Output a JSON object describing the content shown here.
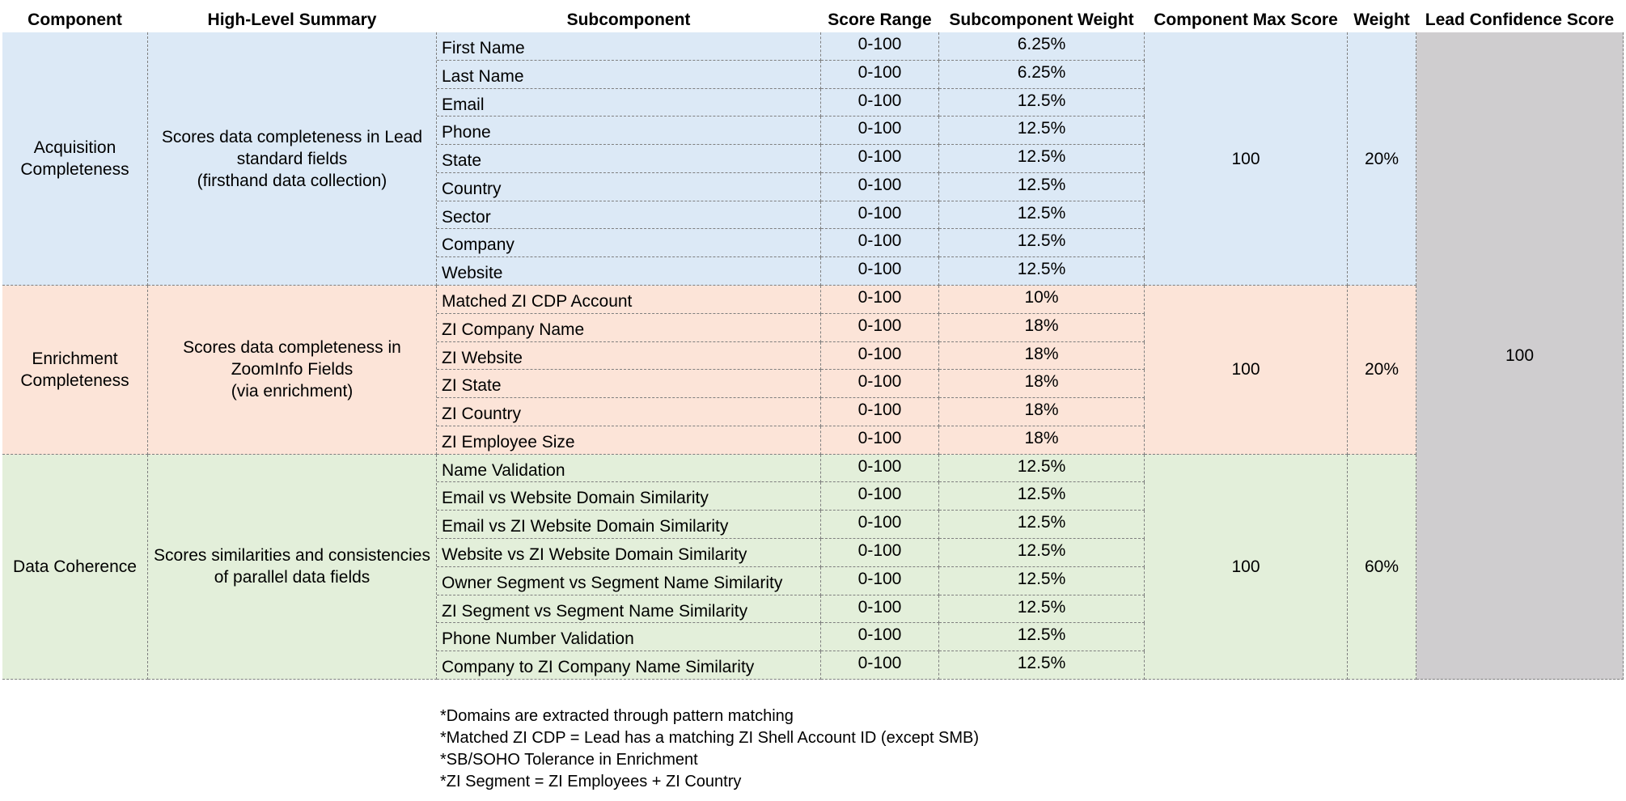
{
  "headers": {
    "component": "Component",
    "summary": "High-Level Summary",
    "subcomponent": "Subcomponent",
    "score_range": "Score Range",
    "sub_weight": "Subcomponent Weight",
    "max_score": "Component Max Score",
    "weight": "Weight",
    "lead_score": "Lead Confidence Score"
  },
  "lead_confidence_score": "100",
  "colors": {
    "blue": "#dce9f6",
    "peach": "#fce4d8",
    "green": "#e3efda",
    "gray": "#cfcdcf"
  },
  "groups": [
    {
      "name": "Acquisition\nCompleteness",
      "summary": "Scores data completeness in Lead\nstandard fields\n(firsthand data collection)",
      "max_score": "100",
      "weight": "20%",
      "color": "blue",
      "rows": [
        {
          "sub": "First Name",
          "range": "0-100",
          "w": "6.25%"
        },
        {
          "sub": "Last Name",
          "range": "0-100",
          "w": "6.25%"
        },
        {
          "sub": "Email",
          "range": "0-100",
          "w": "12.5%"
        },
        {
          "sub": "Phone",
          "range": "0-100",
          "w": "12.5%"
        },
        {
          "sub": "State",
          "range": "0-100",
          "w": "12.5%"
        },
        {
          "sub": "Country",
          "range": "0-100",
          "w": "12.5%"
        },
        {
          "sub": "Sector",
          "range": "0-100",
          "w": "12.5%"
        },
        {
          "sub": "Company",
          "range": "0-100",
          "w": "12.5%"
        },
        {
          "sub": "Website",
          "range": "0-100",
          "w": "12.5%"
        }
      ]
    },
    {
      "name": "Enrichment\nCompleteness",
      "summary": "Scores data completeness in\nZoomInfo Fields\n(via enrichment)",
      "max_score": "100",
      "weight": "20%",
      "color": "peach",
      "rows": [
        {
          "sub": "Matched ZI CDP Account",
          "range": "0-100",
          "w": "10%"
        },
        {
          "sub": "ZI Company Name",
          "range": "0-100",
          "w": "18%"
        },
        {
          "sub": "ZI Website",
          "range": "0-100",
          "w": "18%"
        },
        {
          "sub": "ZI State",
          "range": "0-100",
          "w": "18%"
        },
        {
          "sub": "ZI Country",
          "range": "0-100",
          "w": "18%"
        },
        {
          "sub": "ZI Employee Size",
          "range": "0-100",
          "w": "18%"
        }
      ]
    },
    {
      "name": "Data Coherence",
      "summary": "Scores similarities and consistencies\nof parallel data fields",
      "max_score": "100",
      "weight": "60%",
      "color": "green",
      "rows": [
        {
          "sub": "Name Validation",
          "range": "0-100",
          "w": "12.5%"
        },
        {
          "sub": "Email vs Website Domain Similarity",
          "range": "0-100",
          "w": "12.5%"
        },
        {
          "sub": "Email vs ZI Website Domain Similarity",
          "range": "0-100",
          "w": "12.5%"
        },
        {
          "sub": "Website vs ZI Website Domain Similarity",
          "range": "0-100",
          "w": "12.5%"
        },
        {
          "sub": "Owner Segment vs Segment Name Similarity",
          "range": "0-100",
          "w": "12.5%"
        },
        {
          "sub": "ZI Segment vs Segment Name Similarity",
          "range": "0-100",
          "w": "12.5%"
        },
        {
          "sub": "Phone Number Validation",
          "range": "0-100",
          "w": "12.5%"
        },
        {
          "sub": "Company to ZI Company Name Similarity",
          "range": "0-100",
          "w": "12.5%"
        }
      ]
    }
  ],
  "notes": [
    "*Domains are extracted through pattern matching",
    "*Matched ZI CDP = Lead has a matching ZI Shell Account ID (except SMB)",
    "*SB/SOHO Tolerance in Enrichment",
    "*ZI Segment = ZI Employees + ZI Country"
  ]
}
